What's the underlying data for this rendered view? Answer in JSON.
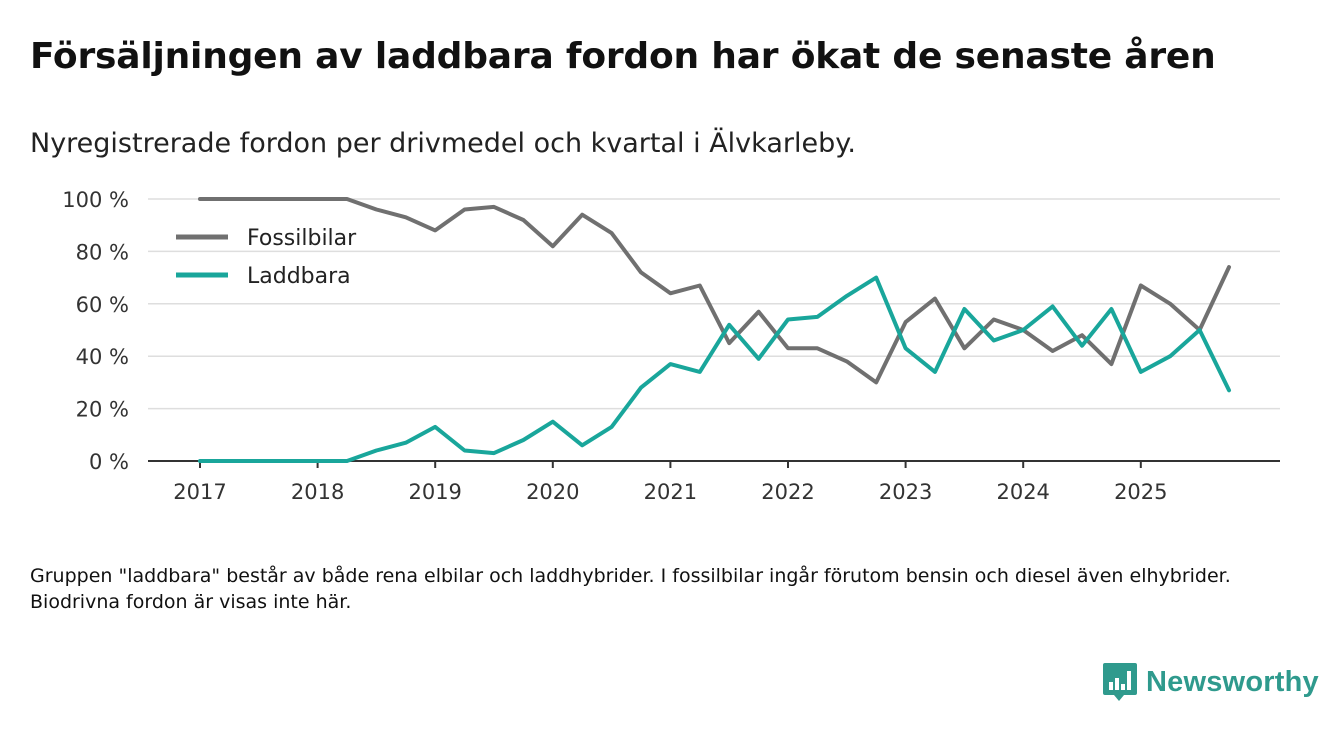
{
  "title": "Försäljningen av laddbara fordon har ökat de senaste åren",
  "subtitle": "Nyregistrerade fordon per drivmedel och kvartal i Älvkarleby.",
  "note": "Gruppen \"laddbara\" består av både rena elbilar och laddhybrider. I fossilbilar ingår förutom bensin och diesel även elhybrider. Biodrivna fordon är visas inte här.",
  "brand": {
    "name": "Newsworthy",
    "color": "#2f9a8d"
  },
  "chart_data": {
    "type": "line",
    "title": "Försäljningen av laddbara fordon har ökat de senaste åren",
    "subtitle": "Nyregistrerade fordon per drivmedel och kvartal i Älvkarleby.",
    "xlabel": "",
    "ylabel": "",
    "x": [
      "2017Q1",
      "2017Q2",
      "2017Q3",
      "2017Q4",
      "2018Q1",
      "2018Q2",
      "2018Q3",
      "2018Q4",
      "2019Q1",
      "2019Q2",
      "2019Q3",
      "2019Q4",
      "2020Q1",
      "2020Q2",
      "2020Q3",
      "2020Q4",
      "2021Q1",
      "2021Q2",
      "2021Q3",
      "2021Q4",
      "2022Q1",
      "2022Q2",
      "2022Q3",
      "2022Q4",
      "2023Q1",
      "2023Q2",
      "2023Q3",
      "2023Q4",
      "2024Q1",
      "2024Q2",
      "2024Q3",
      "2024Q4",
      "2025Q1",
      "2025Q2",
      "2025Q3",
      "2025Q4"
    ],
    "xticks": [
      "2017",
      "2018",
      "2019",
      "2020",
      "2021",
      "2022",
      "2023",
      "2024",
      "2025"
    ],
    "yticks": [
      0,
      20,
      40,
      60,
      80,
      100
    ],
    "ytick_suffix": " %",
    "ylim": [
      0,
      100
    ],
    "grid": true,
    "legend_position": "top-left",
    "series": [
      {
        "name": "Fossilbilar",
        "color": "#707070",
        "values": [
          100,
          100,
          100,
          100,
          100,
          100,
          96,
          93,
          88,
          96,
          97,
          92,
          82,
          94,
          87,
          72,
          64,
          67,
          45,
          57,
          43,
          43,
          38,
          30,
          53,
          62,
          43,
          54,
          50,
          42,
          48,
          37,
          67,
          60,
          50,
          74
        ]
      },
      {
        "name": "Laddbara",
        "color": "#19a69b",
        "values": [
          0,
          0,
          0,
          0,
          0,
          0,
          4,
          7,
          13,
          4,
          3,
          8,
          15,
          6,
          13,
          28,
          37,
          34,
          52,
          39,
          54,
          55,
          63,
          70,
          43,
          34,
          58,
          46,
          50,
          59,
          44,
          58,
          34,
          40,
          50,
          27
        ]
      }
    ]
  }
}
